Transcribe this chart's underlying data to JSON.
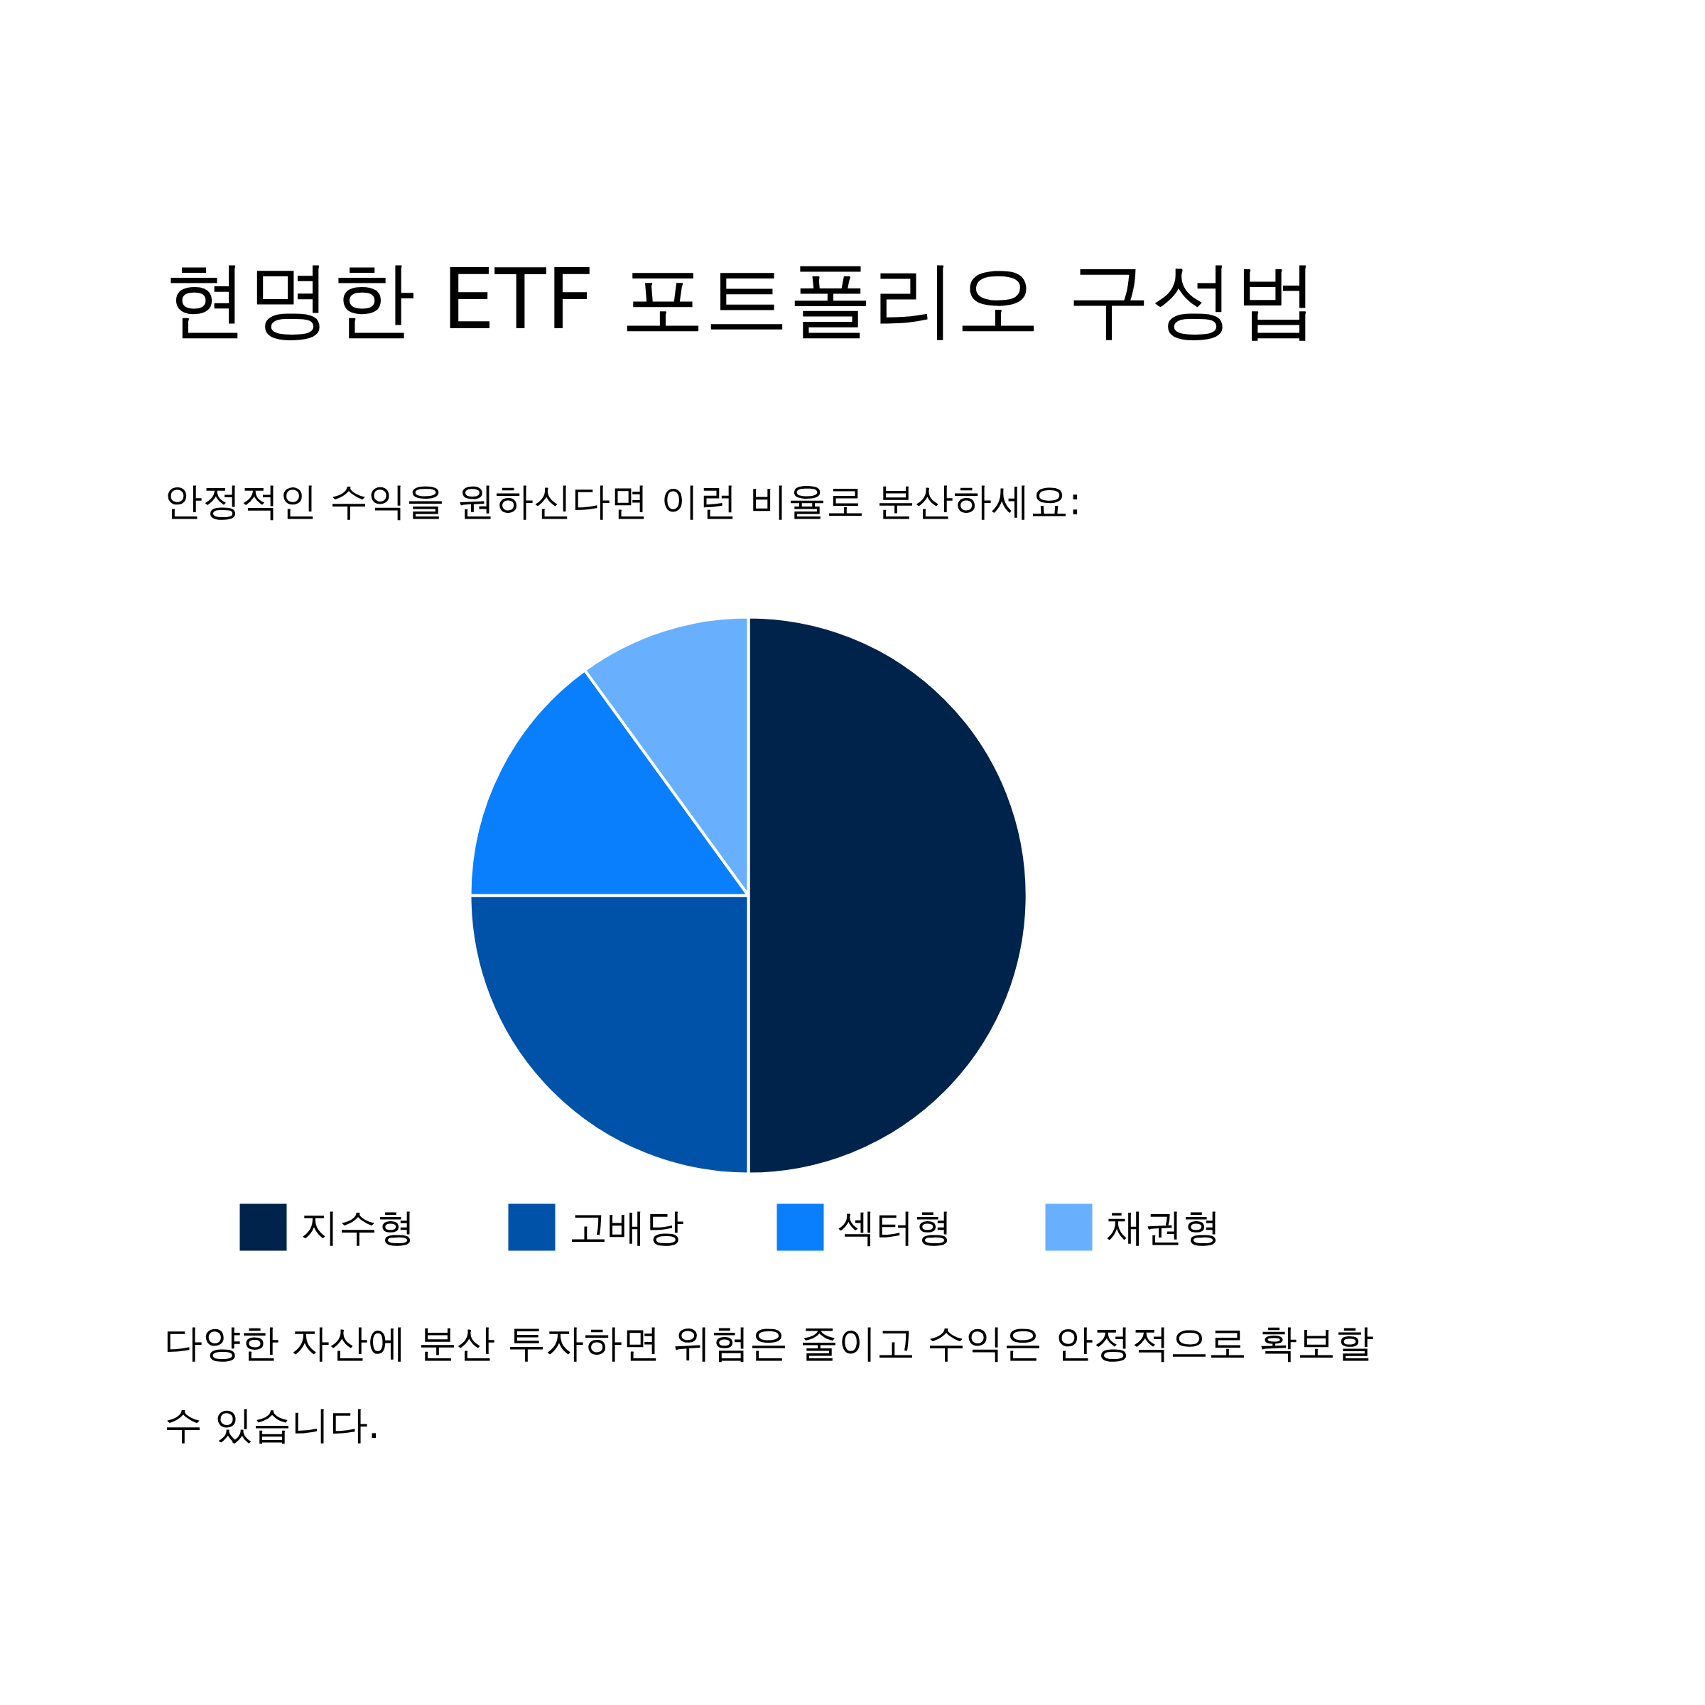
{
  "chart_data": {
    "type": "pie",
    "title": "현명한 ETF 포트폴리오 구성법",
    "subtitle": "안정적인 수익을 원하신다면 이런 비율로 분산하세요:",
    "categories": [
      "지수형",
      "고배당",
      "섹터형",
      "채권형"
    ],
    "values": [
      50,
      25,
      15,
      10
    ],
    "colors": [
      "#00234b",
      "#0052a9",
      "#0a7ffe",
      "#68b0fe"
    ],
    "legend": "bottom",
    "annotations": [
      "다양한 자산에 분산 투자하면 위험은 줄이고 수익은 안정적으로 확보할 수 있습니다."
    ]
  }
}
